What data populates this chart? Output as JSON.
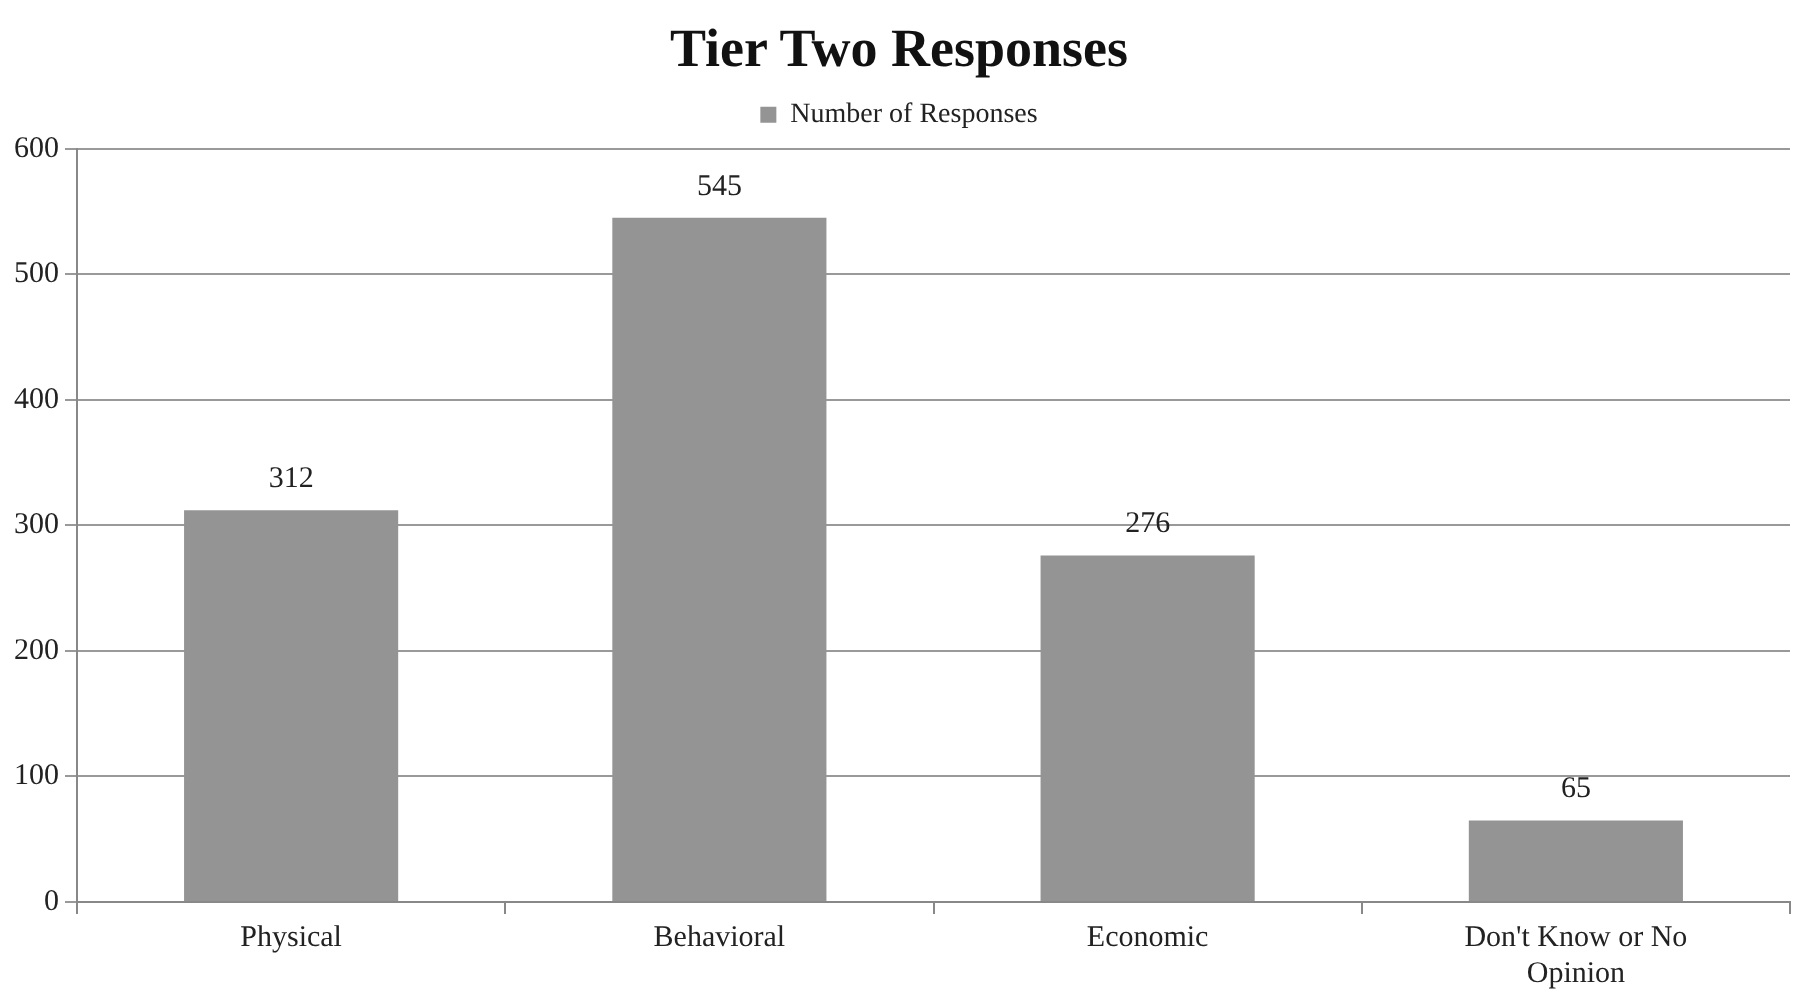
{
  "chart_data": {
    "type": "bar",
    "title": "Tier Two Responses",
    "categories": [
      "Physical",
      "Behavioral",
      "Economic",
      "Don't Know or No Opinion"
    ],
    "series": [
      {
        "name": "Number of Responses",
        "color": "#949494",
        "values": [
          312,
          545,
          276,
          65
        ]
      }
    ],
    "ylim": [
      0,
      600
    ],
    "yticks": [
      0,
      100,
      200,
      300,
      400,
      500,
      600
    ],
    "grid": "y",
    "legend": "top",
    "data_labels": true
  }
}
